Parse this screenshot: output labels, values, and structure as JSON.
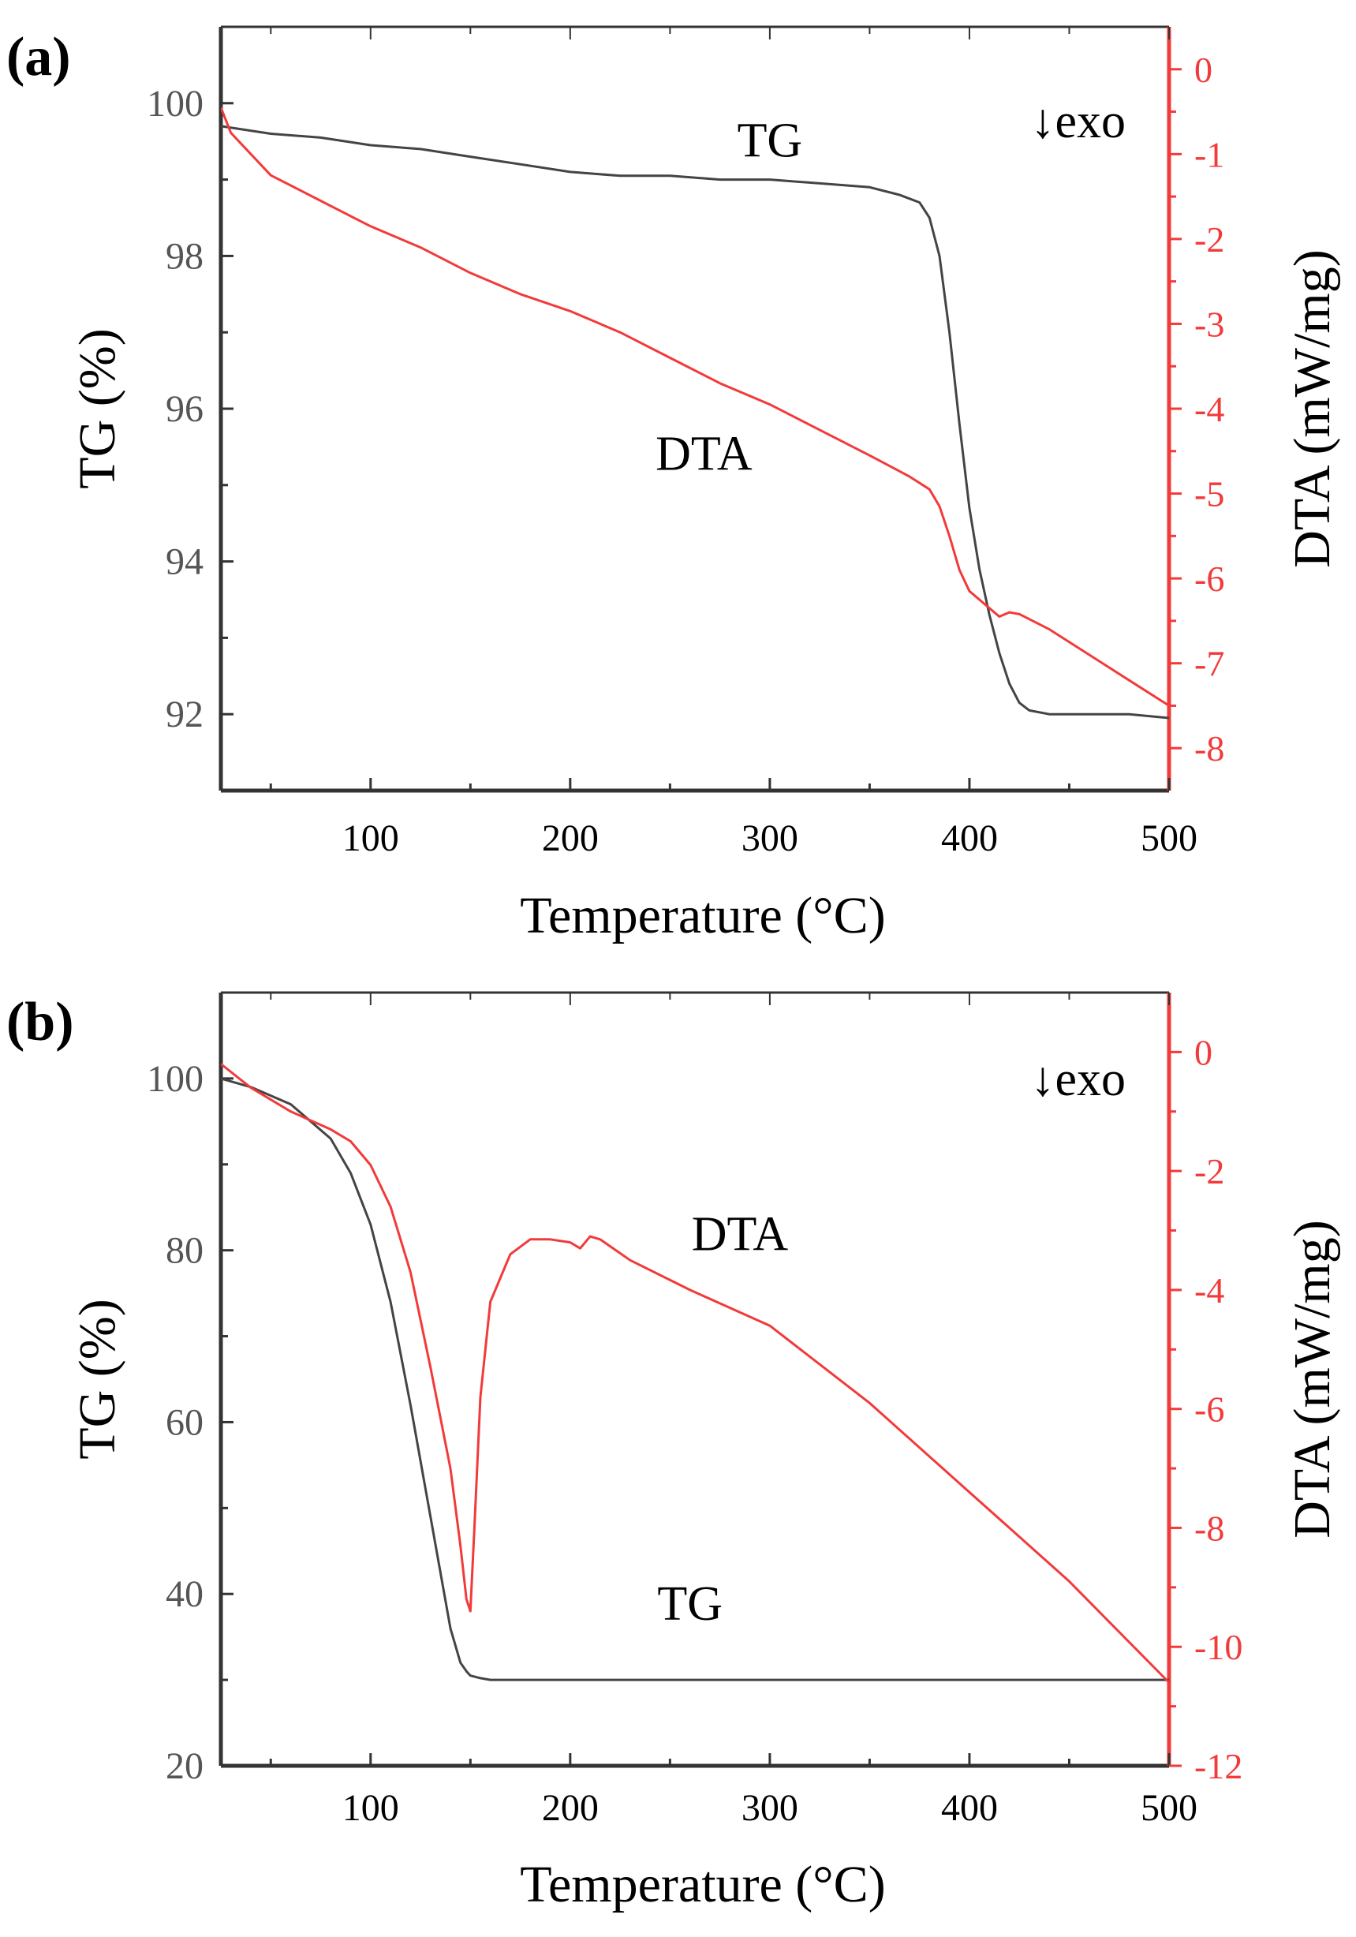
{
  "colors": {
    "tg": "#444444",
    "dta": "#f23a3a",
    "axis": "#333333",
    "text": "#000000"
  },
  "chart_data": [
    {
      "type": "line",
      "panel_label": "(a)",
      "xlabel": "Temperature (°C)",
      "ylabel": "TG (%)",
      "y2label": "DTA (mW/mg)",
      "xlim": [
        25,
        500
      ],
      "ylim": [
        91,
        101
      ],
      "y2lim": [
        -8.5,
        0.5
      ],
      "xticks": [
        100,
        200,
        300,
        400,
        500
      ],
      "xtick_labels": [
        "100",
        "200",
        "300",
        "400",
        "500"
      ],
      "yticks": [
        92,
        94,
        96,
        98,
        100
      ],
      "ytick_labels": [
        "92",
        "94",
        "96",
        "98",
        "100"
      ],
      "y2ticks": [
        0,
        -1,
        -2,
        -3,
        -4,
        -5,
        -6,
        -7,
        -8
      ],
      "y2tick_labels": [
        "0",
        "-1",
        "-2",
        "-3",
        "-4",
        "-5",
        "-6",
        "-7",
        "-8"
      ],
      "annotation": "↓exo",
      "series": [
        {
          "name": "TG",
          "axis": "left",
          "color": "#444444",
          "x": [
            25,
            50,
            75,
            100,
            125,
            150,
            175,
            200,
            225,
            250,
            275,
            300,
            325,
            350,
            365,
            375,
            380,
            385,
            390,
            395,
            400,
            405,
            410,
            415,
            420,
            425,
            430,
            440,
            460,
            480,
            500
          ],
          "y": [
            99.7,
            99.6,
            99.55,
            99.45,
            99.4,
            99.3,
            99.2,
            99.1,
            99.05,
            99.05,
            99.0,
            99.0,
            98.95,
            98.9,
            98.8,
            98.7,
            98.5,
            98.0,
            97.0,
            95.8,
            94.7,
            93.9,
            93.3,
            92.8,
            92.4,
            92.15,
            92.05,
            92.0,
            92.0,
            92.0,
            91.95
          ]
        },
        {
          "name": "DTA",
          "axis": "right",
          "color": "#f23a3a",
          "x": [
            25,
            30,
            40,
            50,
            75,
            100,
            125,
            150,
            175,
            200,
            225,
            250,
            275,
            300,
            325,
            350,
            370,
            380,
            385,
            390,
            395,
            400,
            405,
            410,
            415,
            420,
            425,
            440,
            460,
            480,
            500
          ],
          "y": [
            -0.45,
            -0.75,
            -1.0,
            -1.25,
            -1.55,
            -1.85,
            -2.1,
            -2.4,
            -2.65,
            -2.85,
            -3.1,
            -3.4,
            -3.7,
            -3.95,
            -4.25,
            -4.55,
            -4.8,
            -4.95,
            -5.15,
            -5.5,
            -5.9,
            -6.15,
            -6.25,
            -6.35,
            -6.45,
            -6.4,
            -6.42,
            -6.6,
            -6.9,
            -7.2,
            -7.5
          ]
        }
      ],
      "series_labels": [
        {
          "text": "TG",
          "x": 300,
          "y": 99.3
        },
        {
          "text": "DTA",
          "x": 267,
          "y": 95.2
        }
      ]
    },
    {
      "type": "line",
      "panel_label": "(b)",
      "xlabel": "Temperature (°C)",
      "ylabel": "TG (%)",
      "y2label": "DTA (mW/mg)",
      "xlim": [
        25,
        500
      ],
      "ylim": [
        20,
        110
      ],
      "y2lim": [
        -12,
        1
      ],
      "xticks": [
        100,
        200,
        300,
        400,
        500
      ],
      "xtick_labels": [
        "100",
        "200",
        "300",
        "400",
        "500"
      ],
      "yticks": [
        20,
        40,
        60,
        80,
        100
      ],
      "ytick_labels": [
        "20",
        "40",
        "60",
        "80",
        "100"
      ],
      "y2ticks": [
        0,
        -2,
        -4,
        -6,
        -8,
        -10,
        -12
      ],
      "y2tick_labels": [
        "0",
        "-2",
        "-4",
        "-6",
        "-8",
        "-10",
        "-12"
      ],
      "annotation": "↓exo",
      "series": [
        {
          "name": "TG",
          "axis": "left",
          "color": "#444444",
          "x": [
            25,
            40,
            60,
            80,
            90,
            100,
            110,
            120,
            130,
            140,
            145,
            148,
            150,
            155,
            160,
            200,
            300,
            400,
            500
          ],
          "y": [
            100,
            99,
            97,
            93,
            89,
            83,
            74,
            62,
            49,
            36,
            32,
            31,
            30.5,
            30.2,
            30,
            30,
            30,
            30,
            30
          ]
        },
        {
          "name": "DTA",
          "axis": "right",
          "color": "#f23a3a",
          "x": [
            25,
            40,
            60,
            80,
            90,
            100,
            110,
            120,
            130,
            140,
            145,
            148,
            150,
            152,
            155,
            160,
            170,
            180,
            190,
            200,
            205,
            210,
            215,
            230,
            260,
            300,
            350,
            400,
            450,
            500
          ],
          "y": [
            -0.2,
            -0.6,
            -1.0,
            -1.3,
            -1.5,
            -1.9,
            -2.6,
            -3.7,
            -5.3,
            -7.0,
            -8.3,
            -9.2,
            -9.4,
            -8.0,
            -5.8,
            -4.2,
            -3.4,
            -3.15,
            -3.15,
            -3.2,
            -3.3,
            -3.1,
            -3.15,
            -3.5,
            -4.0,
            -4.6,
            -5.9,
            -7.4,
            -8.9,
            -10.6
          ]
        }
      ],
      "series_labels": [
        {
          "text": "DTA",
          "x": 285,
          "y": 80
        },
        {
          "text": "TG",
          "x": 260,
          "y": 37
        }
      ]
    }
  ]
}
